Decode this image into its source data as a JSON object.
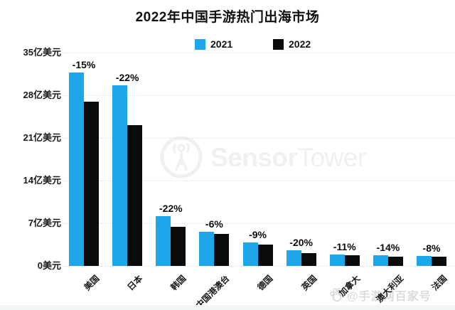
{
  "title": "2022年中国手游热门出海市场",
  "legend": [
    {
      "label": "2021",
      "color": "#1da6e8"
    },
    {
      "label": "2022",
      "color": "#0b0b0b"
    }
  ],
  "y_axis": {
    "ticks": [
      {
        "label": "35亿美元",
        "value": 35
      },
      {
        "label": "28亿美元",
        "value": 28
      },
      {
        "label": "21亿美元",
        "value": 21
      },
      {
        "label": "14亿美元",
        "value": 14
      },
      {
        "label": "7亿美元",
        "value": 7
      },
      {
        "label": "0美元",
        "value": 0
      }
    ]
  },
  "chart_data": {
    "type": "bar",
    "title": "2022年中国手游热门出海市场",
    "categories": [
      "美国",
      "日本",
      "韩国",
      "中国港澳台",
      "德国",
      "英国",
      "加拿大",
      "澳大利亚",
      "法国"
    ],
    "series": [
      {
        "name": "2021",
        "color": "#1da6e8",
        "values": [
          31.7,
          29.6,
          8.2,
          5.6,
          3.9,
          2.6,
          1.9,
          1.8,
          1.6
        ]
      },
      {
        "name": "2022",
        "color": "#0b0b0b",
        "values": [
          26.9,
          23.1,
          6.4,
          5.3,
          3.5,
          2.1,
          1.7,
          1.55,
          1.5
        ]
      }
    ],
    "bar_labels": [
      "-15%",
      "-22%",
      "-22%",
      "-6%",
      "-9%",
      "-20%",
      "-11%",
      "-14%",
      "-8%"
    ],
    "xlabel": "",
    "ylabel": "亿美元",
    "unit": "亿美元",
    "ylim": [
      0,
      35
    ],
    "grid": true,
    "gridstyle": "dotted",
    "legend_position": "top"
  },
  "watermark": {
    "brand_bold": "Sensor",
    "brand_light": "Tower"
  },
  "credit": {
    "text": "@手游网百家号"
  }
}
